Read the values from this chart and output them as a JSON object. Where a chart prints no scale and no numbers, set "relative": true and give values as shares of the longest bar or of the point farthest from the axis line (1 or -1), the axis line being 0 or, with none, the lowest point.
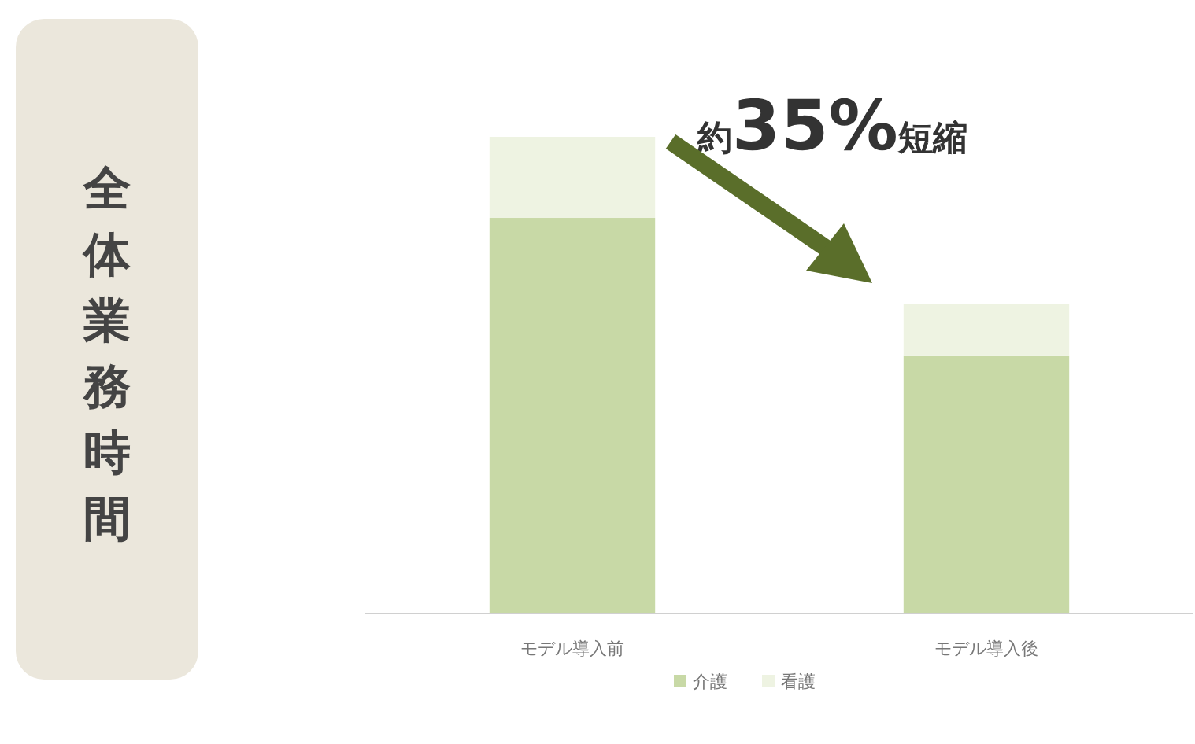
{
  "chart_data": {
    "type": "bar",
    "title": "全体業務時間",
    "annotations": [
      "約35%短縮"
    ],
    "categories": [
      "モデル導入前",
      "モデル導入後"
    ],
    "stacked": true,
    "relative": true,
    "legend": "bottom",
    "series": [
      {
        "name": "介護",
        "color": "#c8d9a6",
        "values": [
          0.83,
          0.54
        ]
      },
      {
        "name": "看護",
        "color": "#eef3e2",
        "values": [
          0.17,
          0.11
        ]
      }
    ]
  }
}
